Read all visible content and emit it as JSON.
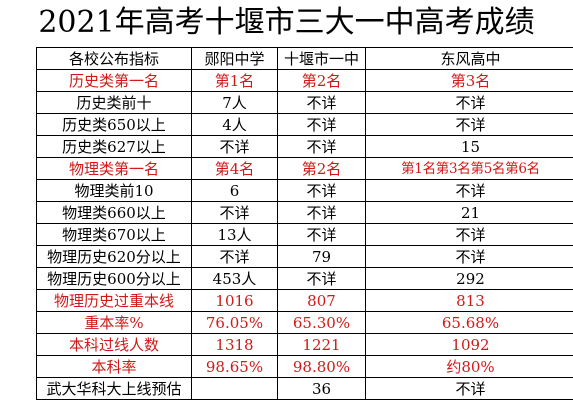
{
  "title": "2021年高考十堰市三大一中高考成绩",
  "header": [
    "各校公布指标",
    "郧阳中学",
    "十堰市一中",
    "东风高中"
  ],
  "rows": [
    {
      "label": "历史类第一名",
      "values": [
        "第1名",
        "第2名",
        "第3名"
      ],
      "highlight": true
    },
    {
      "label": "历史类前十",
      "values": [
        "7人",
        "不详",
        "不详"
      ],
      "highlight": false
    },
    {
      "label": "历史类650以上",
      "values": [
        "4人",
        "不详",
        "不详"
      ],
      "highlight": false
    },
    {
      "label": "历史类627以上",
      "values": [
        "不详",
        "不详",
        "15"
      ],
      "highlight": false
    },
    {
      "label": "物理类第一名",
      "values": [
        "第4名",
        "第2名",
        "第1名第3名第5名第6名"
      ],
      "highlight": true
    },
    {
      "label": "物理类前10",
      "values": [
        "6",
        "不详",
        "不详"
      ],
      "highlight": false
    },
    {
      "label": "物理类660以上",
      "values": [
        "不详",
        "不详",
        "21"
      ],
      "highlight": false
    },
    {
      "label": "物理类670以上",
      "values": [
        "13人",
        "不详",
        "不详"
      ],
      "highlight": false
    },
    {
      "label": "物理历史620分以上",
      "values": [
        "不详",
        "79",
        "不详"
      ],
      "highlight": false
    },
    {
      "label": "物理历史600分以上",
      "values": [
        "453人",
        "不详",
        "292"
      ],
      "highlight": false
    },
    {
      "label": "物理历史过重本线",
      "values": [
        "1016",
        "807",
        "813"
      ],
      "highlight": true
    },
    {
      "label": "重本率%",
      "values": [
        "76.05%",
        "65.30%",
        "65.68%"
      ],
      "highlight": true
    },
    {
      "label": "本科过线人数",
      "values": [
        "1318",
        "1221",
        "1092"
      ],
      "highlight": true
    },
    {
      "label": "本科率",
      "values": [
        "98.65%",
        "98.80%",
        "约80%"
      ],
      "highlight": true
    },
    {
      "label": "武大华科大上线预估",
      "values": [
        "",
        "36",
        "不详"
      ],
      "highlight": false
    }
  ]
}
